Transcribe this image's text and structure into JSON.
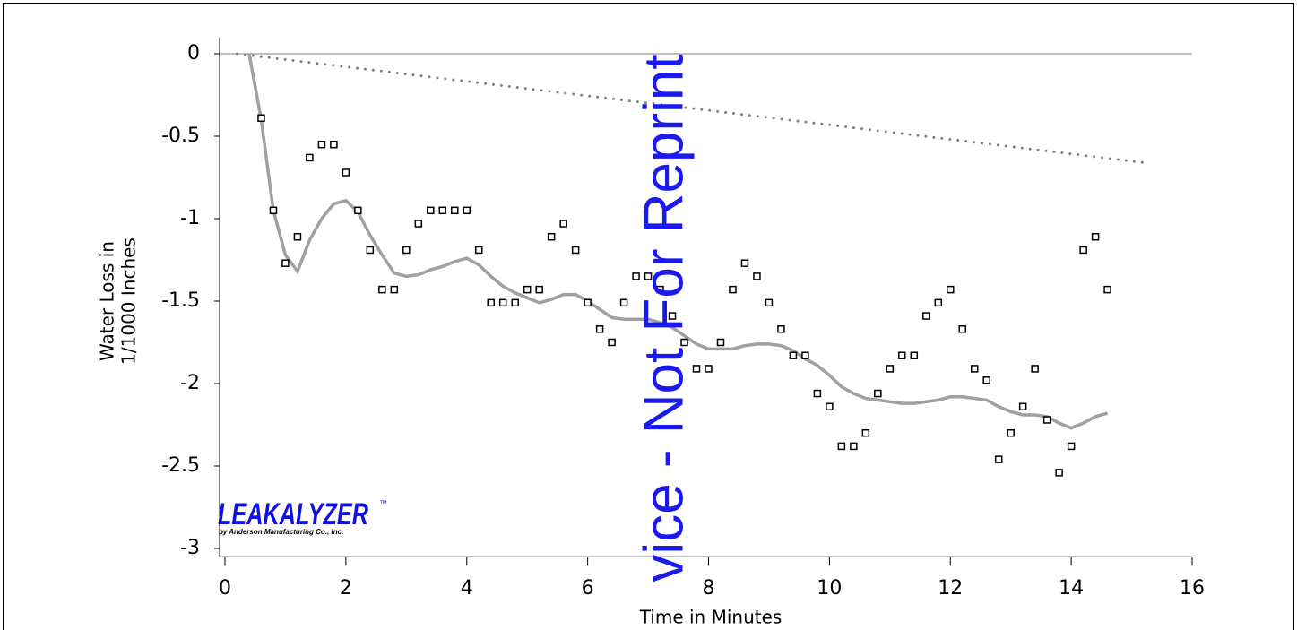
{
  "chart_data": {
    "type": "scatter",
    "x_label": "Time in Minutes",
    "y_label": [
      "Water Loss in",
      "1/1000 Inches"
    ],
    "watermark": "vice - Not For Reprint",
    "logo": {
      "name": "LEAKALYZER",
      "mark": "™",
      "byline": "by Anderson Manufacturing Co., Inc."
    },
    "xlim": [
      0,
      16
    ],
    "ylim": [
      -3.05,
      0.1
    ],
    "xticks": [
      0,
      2,
      4,
      6,
      8,
      10,
      12,
      14,
      16
    ],
    "yticks": [
      0,
      -0.5,
      -1,
      -1.5,
      -2,
      -2.5,
      -3
    ],
    "series": [
      {
        "kind": "scatter",
        "color": "#000000",
        "x": [
          0.6,
          0.8,
          1.0,
          1.2,
          1.4,
          1.6,
          1.8,
          2.0,
          2.2,
          2.4,
          2.6,
          2.8,
          3.0,
          3.2,
          3.4,
          3.6,
          3.8,
          4.0,
          4.2,
          4.4,
          4.6,
          4.8,
          5.0,
          5.2,
          5.4,
          5.6,
          5.8,
          6.0,
          6.2,
          6.4,
          6.6,
          6.8,
          7.0,
          7.2,
          7.4,
          7.6,
          7.8,
          8.0,
          8.2,
          8.4,
          8.6,
          8.8,
          9.0,
          9.2,
          9.4,
          9.6,
          9.8,
          10.0,
          10.2,
          10.4,
          10.6,
          10.8,
          11.0,
          11.2,
          11.4,
          11.6,
          11.8,
          12.0,
          12.2,
          12.4,
          12.6,
          12.8,
          13.0,
          13.2,
          13.4,
          13.6,
          13.8,
          14.0,
          14.2,
          14.4,
          14.6
        ],
        "values": [
          -0.39,
          -0.95,
          -1.27,
          -1.11,
          -0.63,
          -0.55,
          -0.55,
          -0.72,
          -0.95,
          -1.19,
          -1.43,
          -1.43,
          -1.19,
          -1.03,
          -0.95,
          -0.95,
          -0.95,
          -0.95,
          -1.19,
          -1.51,
          -1.51,
          -1.51,
          -1.43,
          -1.43,
          -1.11,
          -1.03,
          -1.19,
          -1.51,
          -1.67,
          -1.75,
          -1.51,
          -1.35,
          -1.35,
          -1.43,
          -1.59,
          -1.75,
          -1.91,
          -1.91,
          -1.75,
          -1.43,
          -1.27,
          -1.35,
          -1.51,
          -1.67,
          -1.83,
          -1.83,
          -2.06,
          -2.14,
          -2.38,
          -2.38,
          -2.3,
          -2.06,
          -1.91,
          -1.83,
          -1.83,
          -1.59,
          -1.51,
          -1.43,
          -1.67,
          -1.91,
          -1.98,
          -2.46,
          -2.3,
          -2.14,
          -1.91,
          -2.22,
          -2.54,
          -2.38,
          -1.19,
          -1.11,
          -1.43
        ]
      },
      {
        "kind": "line",
        "color": "#a0a0a0",
        "x": [
          0.4,
          0.6,
          0.8,
          1.0,
          1.2,
          1.4,
          1.6,
          1.8,
          2.0,
          2.2,
          2.4,
          2.6,
          2.8,
          3.0,
          3.2,
          3.4,
          3.6,
          3.8,
          4.0,
          4.2,
          4.4,
          4.6,
          4.8,
          5.0,
          5.2,
          5.4,
          5.6,
          5.8,
          6.0,
          6.2,
          6.4,
          6.6,
          6.8,
          7.0,
          7.2,
          7.4,
          7.6,
          7.8,
          8.0,
          8.2,
          8.4,
          8.6,
          8.8,
          9.0,
          9.2,
          9.4,
          9.6,
          9.8,
          10.0,
          10.2,
          10.4,
          10.6,
          10.8,
          11.0,
          11.2,
          11.4,
          11.6,
          11.8,
          12.0,
          12.2,
          12.4,
          12.6,
          12.8,
          13.0,
          13.2,
          13.4,
          13.6,
          13.8,
          14.0,
          14.2,
          14.4,
          14.6
        ],
        "values": [
          0,
          -0.4,
          -0.95,
          -1.22,
          -1.32,
          -1.13,
          -1.0,
          -0.91,
          -0.89,
          -0.96,
          -1.1,
          -1.22,
          -1.33,
          -1.35,
          -1.34,
          -1.31,
          -1.29,
          -1.26,
          -1.24,
          -1.28,
          -1.35,
          -1.41,
          -1.45,
          -1.48,
          -1.51,
          -1.49,
          -1.46,
          -1.46,
          -1.5,
          -1.55,
          -1.6,
          -1.61,
          -1.61,
          -1.61,
          -1.63,
          -1.66,
          -1.71,
          -1.76,
          -1.79,
          -1.79,
          -1.79,
          -1.77,
          -1.76,
          -1.76,
          -1.77,
          -1.8,
          -1.85,
          -1.89,
          -1.95,
          -2.02,
          -2.06,
          -2.09,
          -2.1,
          -2.11,
          -2.12,
          -2.12,
          -2.11,
          -2.1,
          -2.08,
          -2.08,
          -2.09,
          -2.1,
          -2.14,
          -2.17,
          -2.19,
          -2.19,
          -2.2,
          -2.24,
          -2.27,
          -2.24,
          -2.2,
          -2.18
        ]
      },
      {
        "kind": "dotted",
        "color": "#808080",
        "x": [
          0.2,
          15.2
        ],
        "values": [
          0,
          -0.66
        ]
      }
    ]
  }
}
